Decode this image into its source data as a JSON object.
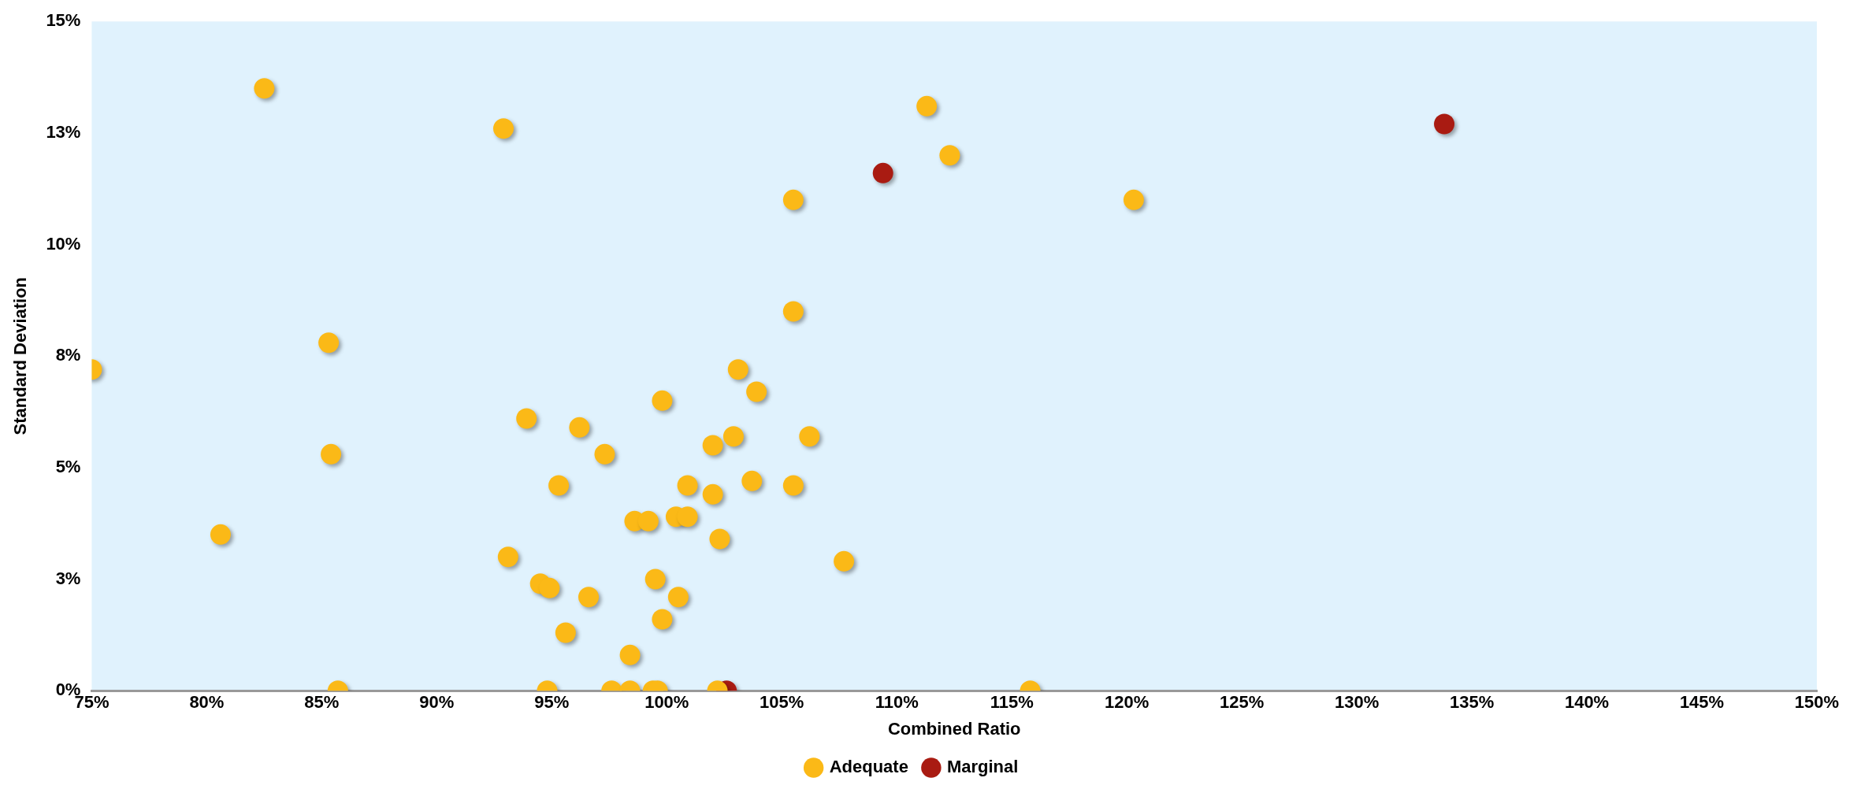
{
  "chart_data": {
    "type": "scatter",
    "xlabel": "Combined Ratio",
    "ylabel": "Standard Deviation",
    "xlim": [
      75,
      150
    ],
    "xticks": [
      {
        "value": 75,
        "label": "75%"
      },
      {
        "value": 80,
        "label": "80%"
      },
      {
        "value": 85,
        "label": "85%"
      },
      {
        "value": 90,
        "label": "90%"
      },
      {
        "value": 95,
        "label": "95%"
      },
      {
        "value": 100,
        "label": "100%"
      },
      {
        "value": 105,
        "label": "105%"
      },
      {
        "value": 110,
        "label": "110%"
      },
      {
        "value": 115,
        "label": "115%"
      },
      {
        "value": 120,
        "label": "120%"
      },
      {
        "value": 125,
        "label": "125%"
      },
      {
        "value": 130,
        "label": "130%"
      },
      {
        "value": 135,
        "label": "135%"
      },
      {
        "value": 140,
        "label": "140%"
      },
      {
        "value": 145,
        "label": "145%"
      },
      {
        "value": 150,
        "label": "150%"
      }
    ],
    "ylim": [
      0,
      15
    ],
    "yticks": [
      {
        "value": 0,
        "label": "0%"
      },
      {
        "value": 2.5,
        "label": "3%"
      },
      {
        "value": 5,
        "label": "5%"
      },
      {
        "value": 7.5,
        "label": "8%"
      },
      {
        "value": 10,
        "label": "10%"
      },
      {
        "value": 12.5,
        "label": "13%"
      },
      {
        "value": 15,
        "label": "15%"
      }
    ],
    "grid": false,
    "legend": "bottom",
    "marker": "circle",
    "series": [
      {
        "name": "Adequate",
        "color": "#fbb917",
        "x": [
          82.5,
          92.9,
          111.3,
          112.3,
          105.5,
          120.3,
          105.5,
          85.3,
          75.0,
          103.1,
          99.8,
          103.9,
          93.9,
          96.2,
          85.4,
          97.3,
          102.0,
          102.9,
          106.2,
          95.3,
          100.9,
          103.7,
          105.5,
          102.0,
          98.6,
          99.2,
          100.4,
          100.9,
          80.6,
          102.3,
          93.1,
          107.7,
          94.5,
          94.9,
          96.6,
          99.5,
          100.5,
          99.8,
          95.6,
          98.4,
          85.7,
          94.8,
          97.6,
          98.4,
          99.4,
          99.6,
          102.2,
          115.8
        ],
        "values": [
          13.5,
          12.6,
          13.1,
          12.0,
          11.0,
          11.0,
          8.5,
          7.8,
          7.2,
          7.2,
          6.5,
          6.7,
          6.1,
          5.9,
          5.3,
          5.3,
          5.5,
          5.7,
          5.7,
          4.6,
          4.6,
          4.7,
          4.6,
          4.4,
          3.8,
          3.8,
          3.9,
          3.9,
          3.5,
          3.4,
          3.0,
          2.9,
          2.4,
          2.3,
          2.1,
          2.5,
          2.1,
          1.6,
          1.3,
          0.8,
          0,
          0,
          0,
          0,
          0,
          0,
          0,
          0
        ]
      },
      {
        "name": "Marginal",
        "color": "#a91b12",
        "x": [
          133.8,
          109.4,
          102.6
        ],
        "values": [
          12.7,
          11.6,
          0
        ]
      }
    ]
  }
}
